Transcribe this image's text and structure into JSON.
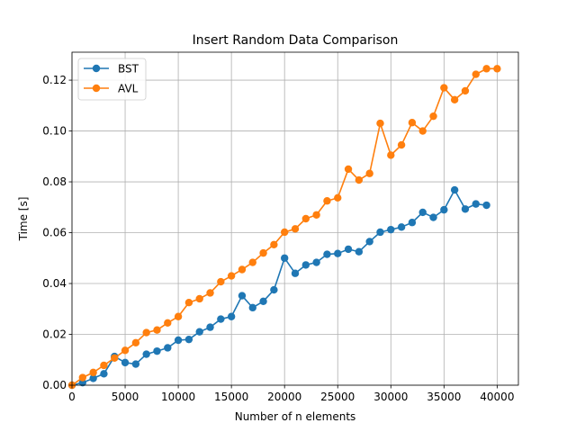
{
  "chart_data": {
    "type": "line",
    "title": "Insert Random Data Comparison",
    "xlabel": "Number of n elements",
    "ylabel": "Time [s]",
    "xlim": [
      0,
      42000
    ],
    "ylim": [
      0,
      0.131
    ],
    "grid": true,
    "legend_position": "top-left",
    "x_ticks": [
      0,
      5000,
      10000,
      15000,
      20000,
      25000,
      30000,
      35000,
      40000
    ],
    "x_tick_labels": [
      "0",
      "5000",
      "10000",
      "15000",
      "20000",
      "25000",
      "30000",
      "35000",
      "40000"
    ],
    "y_ticks": [
      0,
      0.02,
      0.04,
      0.06,
      0.08,
      0.1,
      0.12
    ],
    "y_tick_labels": [
      "0.00",
      "0.02",
      "0.04",
      "0.06",
      "0.08",
      "0.10",
      "0.12"
    ],
    "series": [
      {
        "name": "BST",
        "color": "#1f77b4",
        "x": [
          0,
          1000,
          2000,
          3000,
          4000,
          5000,
          6000,
          7000,
          8000,
          9000,
          10000,
          11000,
          12000,
          13000,
          14000,
          15000,
          16000,
          17000,
          18000,
          19000,
          20000,
          21000,
          22000,
          23000,
          24000,
          25000,
          26000,
          27000,
          28000,
          29000,
          30000,
          31000,
          32000,
          33000,
          34000,
          35000,
          36000,
          37000,
          38000,
          39000
        ],
        "values": [
          0.0,
          0.001,
          0.0027,
          0.0045,
          0.0113,
          0.0089,
          0.0083,
          0.0122,
          0.0134,
          0.0147,
          0.0177,
          0.018,
          0.021,
          0.0228,
          0.026,
          0.027,
          0.0352,
          0.0305,
          0.033,
          0.0375,
          0.05,
          0.044,
          0.0473,
          0.0483,
          0.0515,
          0.0518,
          0.0535,
          0.0525,
          0.0565,
          0.0602,
          0.0612,
          0.0622,
          0.064,
          0.068,
          0.066,
          0.069,
          0.0768,
          0.0693,
          0.0713,
          0.0708
        ]
      },
      {
        "name": "AVL",
        "color": "#ff7f0e",
        "x": [
          0,
          1000,
          2000,
          3000,
          4000,
          5000,
          6000,
          7000,
          8000,
          9000,
          10000,
          11000,
          12000,
          13000,
          14000,
          15000,
          16000,
          17000,
          18000,
          19000,
          20000,
          21000,
          22000,
          23000,
          24000,
          25000,
          26000,
          27000,
          28000,
          29000,
          30000,
          31000,
          32000,
          33000,
          34000,
          35000,
          36000,
          37000,
          38000,
          39000,
          40000
        ],
        "values": [
          0.0,
          0.003,
          0.005,
          0.0078,
          0.0107,
          0.0137,
          0.0167,
          0.0207,
          0.0217,
          0.0245,
          0.027,
          0.0325,
          0.034,
          0.0363,
          0.0407,
          0.043,
          0.0455,
          0.0483,
          0.052,
          0.0553,
          0.0602,
          0.0615,
          0.0655,
          0.067,
          0.0725,
          0.0737,
          0.085,
          0.0807,
          0.0833,
          0.103,
          0.0905,
          0.0945,
          0.1033,
          0.1,
          0.1058,
          0.117,
          0.1123,
          0.1158,
          0.1223,
          0.1245,
          0.1245
        ]
      }
    ]
  }
}
